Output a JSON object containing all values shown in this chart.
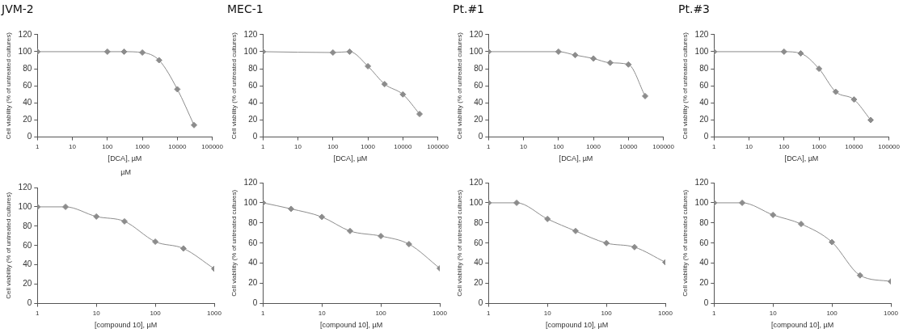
{
  "chart_data": [
    {
      "type": "line",
      "title": "JVM-2",
      "xlabel": "[DCA], µM",
      "ylabel": "Cell viability (% of untreated cultures)",
      "log": "x",
      "grid": false,
      "legend": false,
      "marker": "diamond",
      "line_style": "solid",
      "xlim": [
        1,
        100000
      ],
      "xticks": [
        1,
        10,
        100,
        1000,
        10000,
        100000
      ],
      "ylim": [
        0,
        120
      ],
      "yticks": [
        0,
        20,
        40,
        60,
        80,
        100,
        120
      ],
      "series": [
        {
          "color": "#8c8c8c",
          "x": [
            1,
            100,
            300,
            1000,
            3000,
            10000,
            30000
          ],
          "values": [
            100,
            100,
            100,
            99,
            90,
            56,
            14
          ]
        }
      ]
    },
    {
      "type": "line",
      "title": "MEC-1",
      "xlabel": "[DCA], µM",
      "ylabel": "Cell viability (% of untreated cultures)",
      "log": "x",
      "grid": false,
      "legend": false,
      "marker": "diamond",
      "line_style": "solid",
      "xlim": [
        1,
        100000
      ],
      "xticks": [
        1,
        10,
        100,
        1000,
        10000,
        100000
      ],
      "ylim": [
        0,
        120
      ],
      "yticks": [
        0,
        20,
        40,
        60,
        80,
        100,
        120
      ],
      "series": [
        {
          "color": "#8c8c8c",
          "x": [
            1,
            100,
            300,
            1000,
            3000,
            10000,
            30000
          ],
          "values": [
            100,
            99,
            100,
            83,
            62,
            50,
            27
          ]
        }
      ]
    },
    {
      "type": "line",
      "title": "Pt.#1",
      "xlabel": "[DCA], µM",
      "ylabel": "Cell viability (% of untreated cultures)",
      "log": "x",
      "grid": false,
      "legend": false,
      "marker": "diamond",
      "line_style": "solid",
      "xlim": [
        1,
        100000
      ],
      "xticks": [
        1,
        10,
        100,
        1000,
        10000,
        100000
      ],
      "ylim": [
        0,
        120
      ],
      "yticks": [
        0,
        20,
        40,
        60,
        80,
        100,
        120
      ],
      "series": [
        {
          "color": "#8c8c8c",
          "x": [
            1,
            100,
            300,
            1000,
            3000,
            10000,
            30000
          ],
          "values": [
            100,
            100,
            96,
            92,
            87,
            85,
            48
          ]
        }
      ]
    },
    {
      "type": "line",
      "title": "Pt.#3",
      "xlabel": "[DCA], µM",
      "ylabel": "Cell viability (% of untreated cultures)",
      "log": "x",
      "grid": false,
      "legend": false,
      "marker": "diamond",
      "line_style": "solid",
      "xlim": [
        1,
        100000
      ],
      "xticks": [
        1,
        10,
        100,
        1000,
        10000,
        100000
      ],
      "ylim": [
        0,
        120
      ],
      "yticks": [
        0,
        20,
        40,
        60,
        80,
        100,
        120
      ],
      "series": [
        {
          "color": "#8c8c8c",
          "x": [
            1,
            100,
            300,
            1000,
            3000,
            10000,
            30000
          ],
          "values": [
            100,
            100,
            98,
            80,
            53,
            44,
            20
          ]
        }
      ]
    },
    {
      "type": "line",
      "annotations": [
        "µM"
      ],
      "xlabel": "[compound 10], µM",
      "ylabel": "Cell viability (% of untreated cultures)",
      "log": "x",
      "grid": false,
      "legend": false,
      "marker": "diamond",
      "line_style": "solid",
      "xlim": [
        1,
        1000
      ],
      "xticks": [
        1,
        10,
        100,
        1000
      ],
      "ylim": [
        0,
        120
      ],
      "yticks": [
        0,
        20,
        40,
        60,
        80,
        100,
        120
      ],
      "series": [
        {
          "color": "#8c8c8c",
          "x": [
            1,
            3,
            10,
            30,
            100,
            300,
            1000
          ],
          "values": [
            100,
            100,
            90,
            85,
            64,
            57,
            36
          ]
        }
      ]
    },
    {
      "type": "line",
      "xlabel": "[compound 10], µM",
      "ylabel": "Cell viability (% of untreated cultures)",
      "log": "x",
      "grid": false,
      "legend": false,
      "marker": "diamond",
      "line_style": "solid",
      "xlim": [
        1,
        1000
      ],
      "xticks": [
        1,
        10,
        100,
        1000
      ],
      "ylim": [
        0,
        120
      ],
      "yticks": [
        0,
        20,
        40,
        60,
        80,
        100,
        120
      ],
      "series": [
        {
          "color": "#8c8c8c",
          "x": [
            1,
            3,
            10,
            30,
            100,
            300,
            1000
          ],
          "values": [
            100,
            94,
            86,
            72,
            67,
            59,
            35
          ]
        }
      ]
    },
    {
      "type": "line",
      "xlabel": "[compound 10], µM",
      "ylabel": "Cell viability (% of untreated cultures)",
      "log": "x",
      "grid": false,
      "legend": false,
      "marker": "diamond",
      "line_style": "solid",
      "xlim": [
        1,
        1000
      ],
      "xticks": [
        1,
        10,
        100,
        1000
      ],
      "ylim": [
        0,
        120
      ],
      "yticks": [
        0,
        20,
        40,
        60,
        80,
        100,
        120
      ],
      "series": [
        {
          "color": "#8c8c8c",
          "x": [
            1,
            3,
            10,
            30,
            100,
            300,
            1000
          ],
          "values": [
            100,
            100,
            84,
            72,
            60,
            56,
            41
          ]
        }
      ]
    },
    {
      "type": "line",
      "xlabel": "[compound 10], µM",
      "ylabel": "Cell viability (% of untreated cultures)",
      "log": "x",
      "grid": false,
      "legend": false,
      "marker": "diamond",
      "line_style": "solid",
      "xlim": [
        1,
        1000
      ],
      "xticks": [
        1,
        10,
        100,
        1000
      ],
      "ylim": [
        0,
        120
      ],
      "yticks": [
        0,
        20,
        40,
        60,
        80,
        100,
        120
      ],
      "series": [
        {
          "color": "#8c8c8c",
          "x": [
            1,
            3,
            10,
            30,
            100,
            300,
            1000
          ],
          "values": [
            100,
            100,
            88,
            79,
            61,
            28,
            22
          ]
        }
      ]
    }
  ]
}
